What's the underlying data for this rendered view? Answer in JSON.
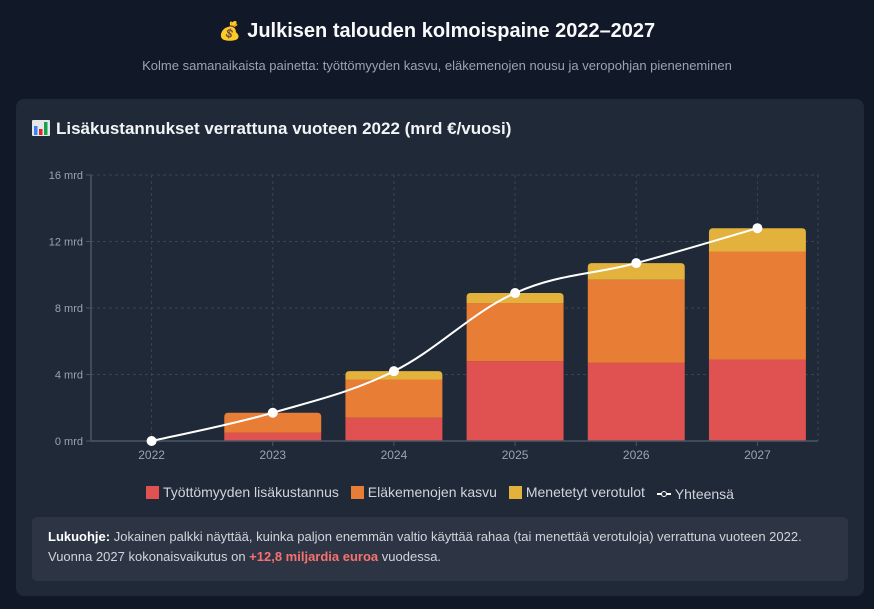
{
  "header": {
    "title_emoji": "💰",
    "title": "Julkisen talouden kolmoispaine 2022–2027",
    "subtitle": "Kolme samanaikaista painetta: työttömyyden kasvu, eläkemenojen nousu ja veropohjan pieneneminen"
  },
  "card": {
    "title": "Lisäkustannukset verrattuna vuoteen 2022 (mrd €/vuosi)"
  },
  "info": {
    "label": "Lukuohje:",
    "text_before": " Jokainen palkki näyttää, kuinka paljon enemmän valtio käyttää rahaa (tai menettää verotuloja) verrattuna vuoteen 2022. Vuonna 2027 kokonaisvaikutus on ",
    "highlight": "+12,8 miljardia euroa",
    "text_after": " vuodessa."
  },
  "colors": {
    "unemployment": "#e05252",
    "pension": "#e87d35",
    "tax": "#e3b23c",
    "total": "#ffffff",
    "grid": "#3a4353",
    "axis": "#4b5563",
    "tick_text": "#9ca3af"
  },
  "chart_data": {
    "type": "bar",
    "stacked": true,
    "title": "Lisäkustannukset verrattuna vuoteen 2022 (mrd €/vuosi)",
    "xlabel": "",
    "ylabel": "",
    "categories": [
      "2022",
      "2023",
      "2024",
      "2025",
      "2026",
      "2027"
    ],
    "y_ticks": [
      "0 mrd",
      "4 mrd",
      "8 mrd",
      "12 mrd",
      "16 mrd"
    ],
    "ylim": [
      0,
      16
    ],
    "grid": true,
    "legend_position": "bottom",
    "series": [
      {
        "name": "Työttömyyden lisäkustannus",
        "type": "bar",
        "color": "#e05252",
        "values": [
          0,
          0.5,
          1.4,
          4.8,
          4.7,
          4.9
        ]
      },
      {
        "name": "Eläkemenojen kasvu",
        "type": "bar",
        "color": "#e87d35",
        "values": [
          0,
          1.2,
          2.3,
          3.5,
          5.0,
          6.5
        ]
      },
      {
        "name": "Menetetyt verotulot",
        "type": "bar",
        "color": "#e3b23c",
        "values": [
          0,
          0.0,
          0.5,
          0.6,
          1.0,
          1.4
        ]
      },
      {
        "name": "Yhteensä",
        "type": "line",
        "color": "#ffffff",
        "values": [
          0,
          1.7,
          4.2,
          8.9,
          10.7,
          12.8
        ]
      }
    ]
  }
}
